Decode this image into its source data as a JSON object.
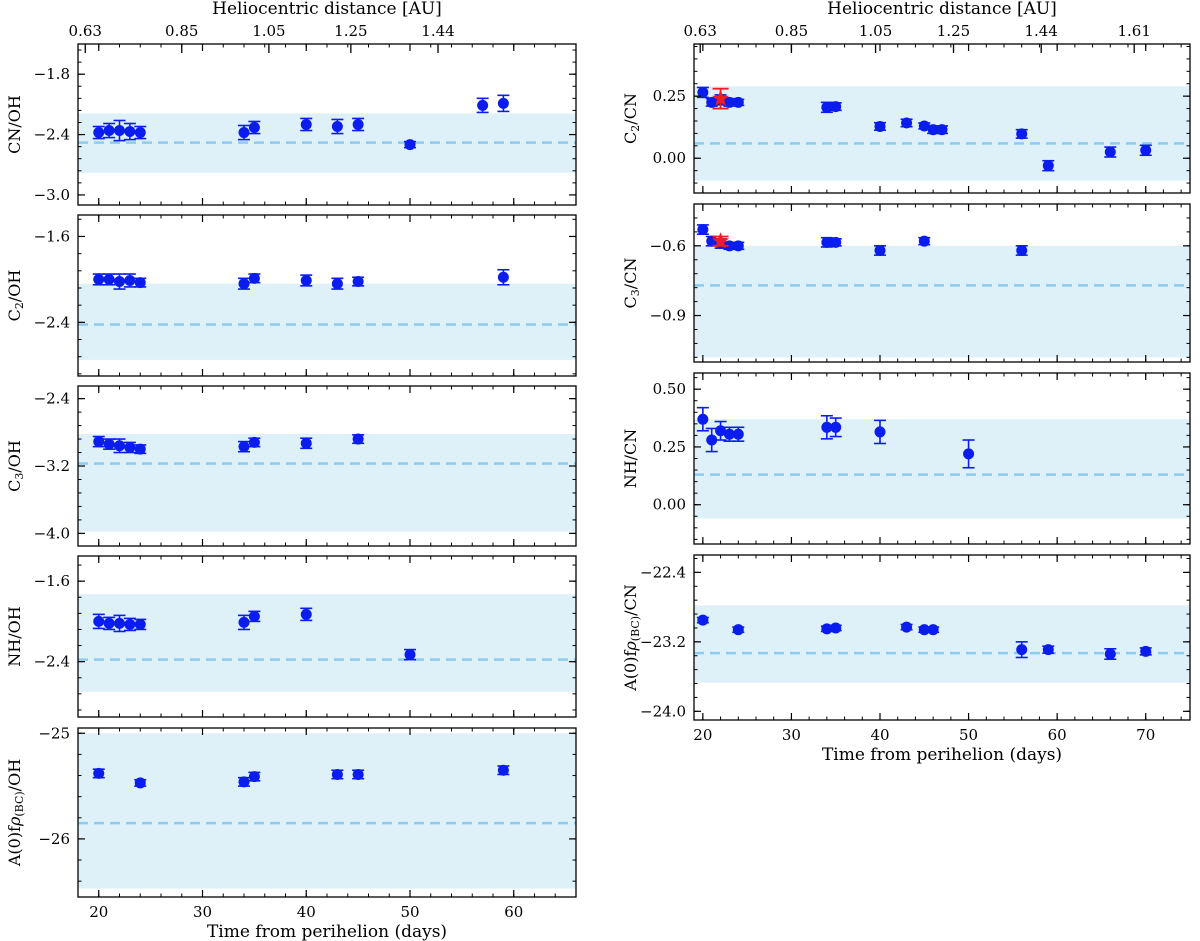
{
  "colors": {
    "point": "#0a1cee",
    "star": "#ee1c24",
    "band": "#dff1f8",
    "dashed": "#8dcbef",
    "axis": "#000000"
  },
  "figure": {
    "top_axis_label": "Heliocentric distance [AU]",
    "bottom_axis_label": "Time from perihelion (days)"
  },
  "chart_data": [
    {
      "type": "scatter",
      "column": "left",
      "row": 0,
      "ylabel": "CN/OH",
      "ylabel_parts": [
        [
          "CN/OH",
          ""
        ]
      ],
      "xlim": [
        18,
        66
      ],
      "ylim": [
        -3.1,
        -1.5
      ],
      "yticks": [
        -3.0,
        -2.4,
        -1.8
      ],
      "ytick_labels": [
        "−3.0",
        "−2.4",
        "−1.8"
      ],
      "top_axis": {
        "label": "Heliocentric distance [AU]",
        "ticks": [
          18.7,
          28,
          36.4,
          44.3,
          52.7
        ],
        "tick_labels": [
          "0.63",
          "0.85",
          "1.05",
          "1.25",
          "1.44"
        ]
      },
      "mean": -2.48,
      "band": [
        -2.78,
        -2.19
      ],
      "series": [
        {
          "name": "measurements",
          "x": [
            20,
            21,
            22,
            23,
            24,
            34,
            35,
            40,
            43,
            45,
            50,
            57,
            59
          ],
          "y": [
            -2.38,
            -2.36,
            -2.36,
            -2.37,
            -2.38,
            -2.38,
            -2.33,
            -2.3,
            -2.32,
            -2.3,
            -2.5,
            -2.11,
            -2.09
          ],
          "err": [
            0.06,
            0.07,
            0.1,
            0.08,
            0.06,
            0.07,
            0.06,
            0.06,
            0.07,
            0.06,
            0.03,
            0.07,
            0.08
          ]
        }
      ],
      "star": null
    },
    {
      "type": "scatter",
      "column": "left",
      "row": 1,
      "ylabel": "C2/OH",
      "ylabel_parts": [
        [
          "C",
          ""
        ],
        [
          "2",
          "sub"
        ],
        [
          "/OH",
          ""
        ]
      ],
      "xlim": [
        18,
        66
      ],
      "ylim": [
        -2.9,
        -1.4
      ],
      "yticks": [
        -2.4,
        -1.6
      ],
      "ytick_labels": [
        "−2.4",
        "−1.6"
      ],
      "mean": -2.42,
      "band": [
        -2.75,
        -2.04
      ],
      "series": [
        {
          "name": "measurements",
          "x": [
            20,
            21,
            22,
            23,
            24,
            34,
            35,
            40,
            43,
            45,
            59
          ],
          "y": [
            -2.0,
            -2.0,
            -2.02,
            -2.01,
            -2.03,
            -2.04,
            -1.99,
            -2.01,
            -2.04,
            -2.02,
            -1.98
          ],
          "err": [
            0.05,
            0.05,
            0.07,
            0.06,
            0.04,
            0.05,
            0.04,
            0.05,
            0.05,
            0.04,
            0.07
          ]
        }
      ],
      "star": null
    },
    {
      "type": "scatter",
      "column": "left",
      "row": 2,
      "ylabel": "C3/OH",
      "ylabel_parts": [
        [
          "C",
          ""
        ],
        [
          "3",
          "sub"
        ],
        [
          "/OH",
          ""
        ]
      ],
      "xlim": [
        18,
        66
      ],
      "ylim": [
        -4.15,
        -2.25
      ],
      "yticks": [
        -4.0,
        -3.2,
        -2.4
      ],
      "ytick_labels": [
        "−4.0",
        "−3.2",
        "−2.4"
      ],
      "mean": -3.17,
      "band": [
        -3.98,
        -2.82
      ],
      "series": [
        {
          "name": "measurements",
          "x": [
            20,
            21,
            22,
            23,
            24,
            34,
            35,
            40,
            45
          ],
          "y": [
            -2.91,
            -2.94,
            -2.96,
            -2.98,
            -3.0,
            -2.97,
            -2.92,
            -2.93,
            -2.88
          ],
          "err": [
            0.06,
            0.06,
            0.08,
            0.06,
            0.05,
            0.06,
            0.05,
            0.06,
            0.05
          ]
        }
      ],
      "star": null
    },
    {
      "type": "scatter",
      "column": "left",
      "row": 3,
      "ylabel": "NH/OH",
      "ylabel_parts": [
        [
          "NH/OH",
          ""
        ]
      ],
      "xlim": [
        18,
        66
      ],
      "ylim": [
        -2.95,
        -1.35
      ],
      "yticks": [
        -2.4,
        -1.6
      ],
      "ytick_labels": [
        "−2.4",
        "−1.6"
      ],
      "mean": -2.38,
      "band": [
        -2.7,
        -1.73
      ],
      "series": [
        {
          "name": "measurements",
          "x": [
            20,
            21,
            22,
            23,
            24,
            34,
            35,
            40,
            50
          ],
          "y": [
            -2.0,
            -2.02,
            -2.02,
            -2.03,
            -2.03,
            -2.01,
            -1.95,
            -1.93,
            -2.33
          ],
          "err": [
            0.07,
            0.06,
            0.08,
            0.06,
            0.05,
            0.07,
            0.05,
            0.06,
            0.05
          ]
        }
      ],
      "star": null
    },
    {
      "type": "scatter",
      "column": "left",
      "row": 4,
      "ylabel": "A(0)fρ(BC)/OH",
      "ylabel_parts": [
        [
          "A(0)f",
          ""
        ],
        [
          "ρ",
          "ital"
        ],
        [
          "(BC)",
          "sub"
        ],
        [
          "/OH",
          ""
        ]
      ],
      "xlim": [
        18,
        66
      ],
      "ylim": [
        -26.55,
        -24.95
      ],
      "yticks": [
        -26.0,
        -25.0
      ],
      "ytick_labels": [
        "−26",
        "−25"
      ],
      "mean": -25.85,
      "band": [
        -26.47,
        -25.0
      ],
      "series": [
        {
          "name": "measurements",
          "x": [
            20,
            24,
            34,
            35,
            43,
            45,
            59
          ],
          "y": [
            -25.38,
            -25.47,
            -25.46,
            -25.41,
            -25.39,
            -25.39,
            -25.35
          ],
          "err": [
            0.04,
            0.03,
            0.04,
            0.04,
            0.04,
            0.04,
            0.04
          ]
        }
      ],
      "star": null
    },
    {
      "type": "scatter",
      "column": "right",
      "row": 0,
      "ylabel": "C2/CN",
      "ylabel_parts": [
        [
          "C",
          ""
        ],
        [
          "2",
          "sub"
        ],
        [
          "/CN",
          ""
        ]
      ],
      "xlim": [
        19,
        75
      ],
      "ylim": [
        -0.14,
        0.46
      ],
      "yticks": [
        0.0,
        0.25
      ],
      "ytick_labels": [
        "0.00",
        "0.25"
      ],
      "top_axis": {
        "label": "Heliocentric distance [AU]",
        "ticks": [
          19.7,
          30,
          39.5,
          48.3,
          58.2,
          68.7
        ],
        "tick_labels": [
          "0.63",
          "0.85",
          "1.05",
          "1.25",
          "1.44",
          "1.61"
        ]
      },
      "mean": 0.06,
      "band": [
        -0.09,
        0.29
      ],
      "series": [
        {
          "name": "measurements",
          "x": [
            20,
            21,
            22,
            23,
            24,
            34,
            35,
            40,
            43,
            45,
            46,
            47,
            56,
            59,
            66,
            70
          ],
          "y": [
            0.265,
            0.225,
            0.235,
            0.225,
            0.225,
            0.205,
            0.208,
            0.128,
            0.142,
            0.13,
            0.115,
            0.115,
            0.098,
            -0.03,
            0.025,
            0.032
          ],
          "err": [
            0.02,
            0.015,
            0.02,
            0.015,
            0.012,
            0.02,
            0.015,
            0.015,
            0.015,
            0.012,
            0.015,
            0.015,
            0.017,
            0.02,
            0.02,
            0.02
          ]
        }
      ],
      "star": {
        "x": 22,
        "y": 0.24,
        "err": 0.04
      }
    },
    {
      "type": "scatter",
      "column": "right",
      "row": 1,
      "ylabel": "C3/CN",
      "ylabel_parts": [
        [
          "C",
          ""
        ],
        [
          "3",
          "sub"
        ],
        [
          "/CN",
          ""
        ]
      ],
      "xlim": [
        19,
        75
      ],
      "ylim": [
        -1.1,
        -0.42
      ],
      "yticks": [
        -0.9,
        -0.6
      ],
      "ytick_labels": [
        "−0.9",
        "−0.6"
      ],
      "mean": -0.77,
      "band": [
        -1.08,
        -0.6
      ],
      "series": [
        {
          "name": "measurements",
          "x": [
            20,
            21,
            22,
            23,
            24,
            34,
            35,
            40,
            45,
            56
          ],
          "y": [
            -0.53,
            -0.58,
            -0.59,
            -0.6,
            -0.6,
            -0.585,
            -0.585,
            -0.62,
            -0.58,
            -0.62
          ],
          "err": [
            0.02,
            0.02,
            0.02,
            0.015,
            0.015,
            0.02,
            0.015,
            0.02,
            0.015,
            0.02
          ]
        }
      ],
      "star": {
        "x": 22,
        "y": -0.58,
        "err": 0.02
      }
    },
    {
      "type": "scatter",
      "column": "right",
      "row": 2,
      "ylabel": "NH/CN",
      "ylabel_parts": [
        [
          "NH/CN",
          ""
        ]
      ],
      "xlim": [
        19,
        75
      ],
      "ylim": [
        -0.17,
        0.57
      ],
      "yticks": [
        0.0,
        0.25,
        0.5
      ],
      "ytick_labels": [
        "0.00",
        "0.25",
        "0.50"
      ],
      "mean": 0.13,
      "band": [
        -0.06,
        0.37
      ],
      "series": [
        {
          "name": "measurements",
          "x": [
            20,
            21,
            22,
            23,
            24,
            34,
            35,
            40,
            50
          ],
          "y": [
            0.37,
            0.28,
            0.32,
            0.305,
            0.305,
            0.335,
            0.335,
            0.315,
            0.22
          ],
          "err": [
            0.05,
            0.05,
            0.04,
            0.03,
            0.03,
            0.05,
            0.04,
            0.05,
            0.06
          ]
        }
      ],
      "star": null
    },
    {
      "type": "scatter",
      "column": "right",
      "row": 3,
      "ylabel": "A(0)fρ(BC)/CN",
      "ylabel_parts": [
        [
          "A(0)f",
          ""
        ],
        [
          "ρ",
          "ital"
        ],
        [
          "(BC)",
          "sub"
        ],
        [
          "/CN",
          ""
        ]
      ],
      "xlim": [
        19,
        75
      ],
      "ylim": [
        -24.1,
        -22.2
      ],
      "yticks": [
        -24.0,
        -23.2,
        -22.4
      ],
      "ytick_labels": [
        "−24.0",
        "−23.2",
        "−22.4"
      ],
      "mean": -23.33,
      "band": [
        -23.67,
        -22.78
      ],
      "series": [
        {
          "name": "measurements",
          "x": [
            20,
            24,
            34,
            35,
            43,
            45,
            46,
            56,
            59,
            66,
            70
          ],
          "y": [
            -22.95,
            -23.06,
            -23.05,
            -23.04,
            -23.03,
            -23.06,
            -23.06,
            -23.29,
            -23.29,
            -23.34,
            -23.31
          ],
          "err": [
            0.03,
            0.03,
            0.03,
            0.03,
            0.03,
            0.03,
            0.03,
            0.09,
            0.04,
            0.06,
            0.04
          ]
        }
      ],
      "star": null
    }
  ]
}
